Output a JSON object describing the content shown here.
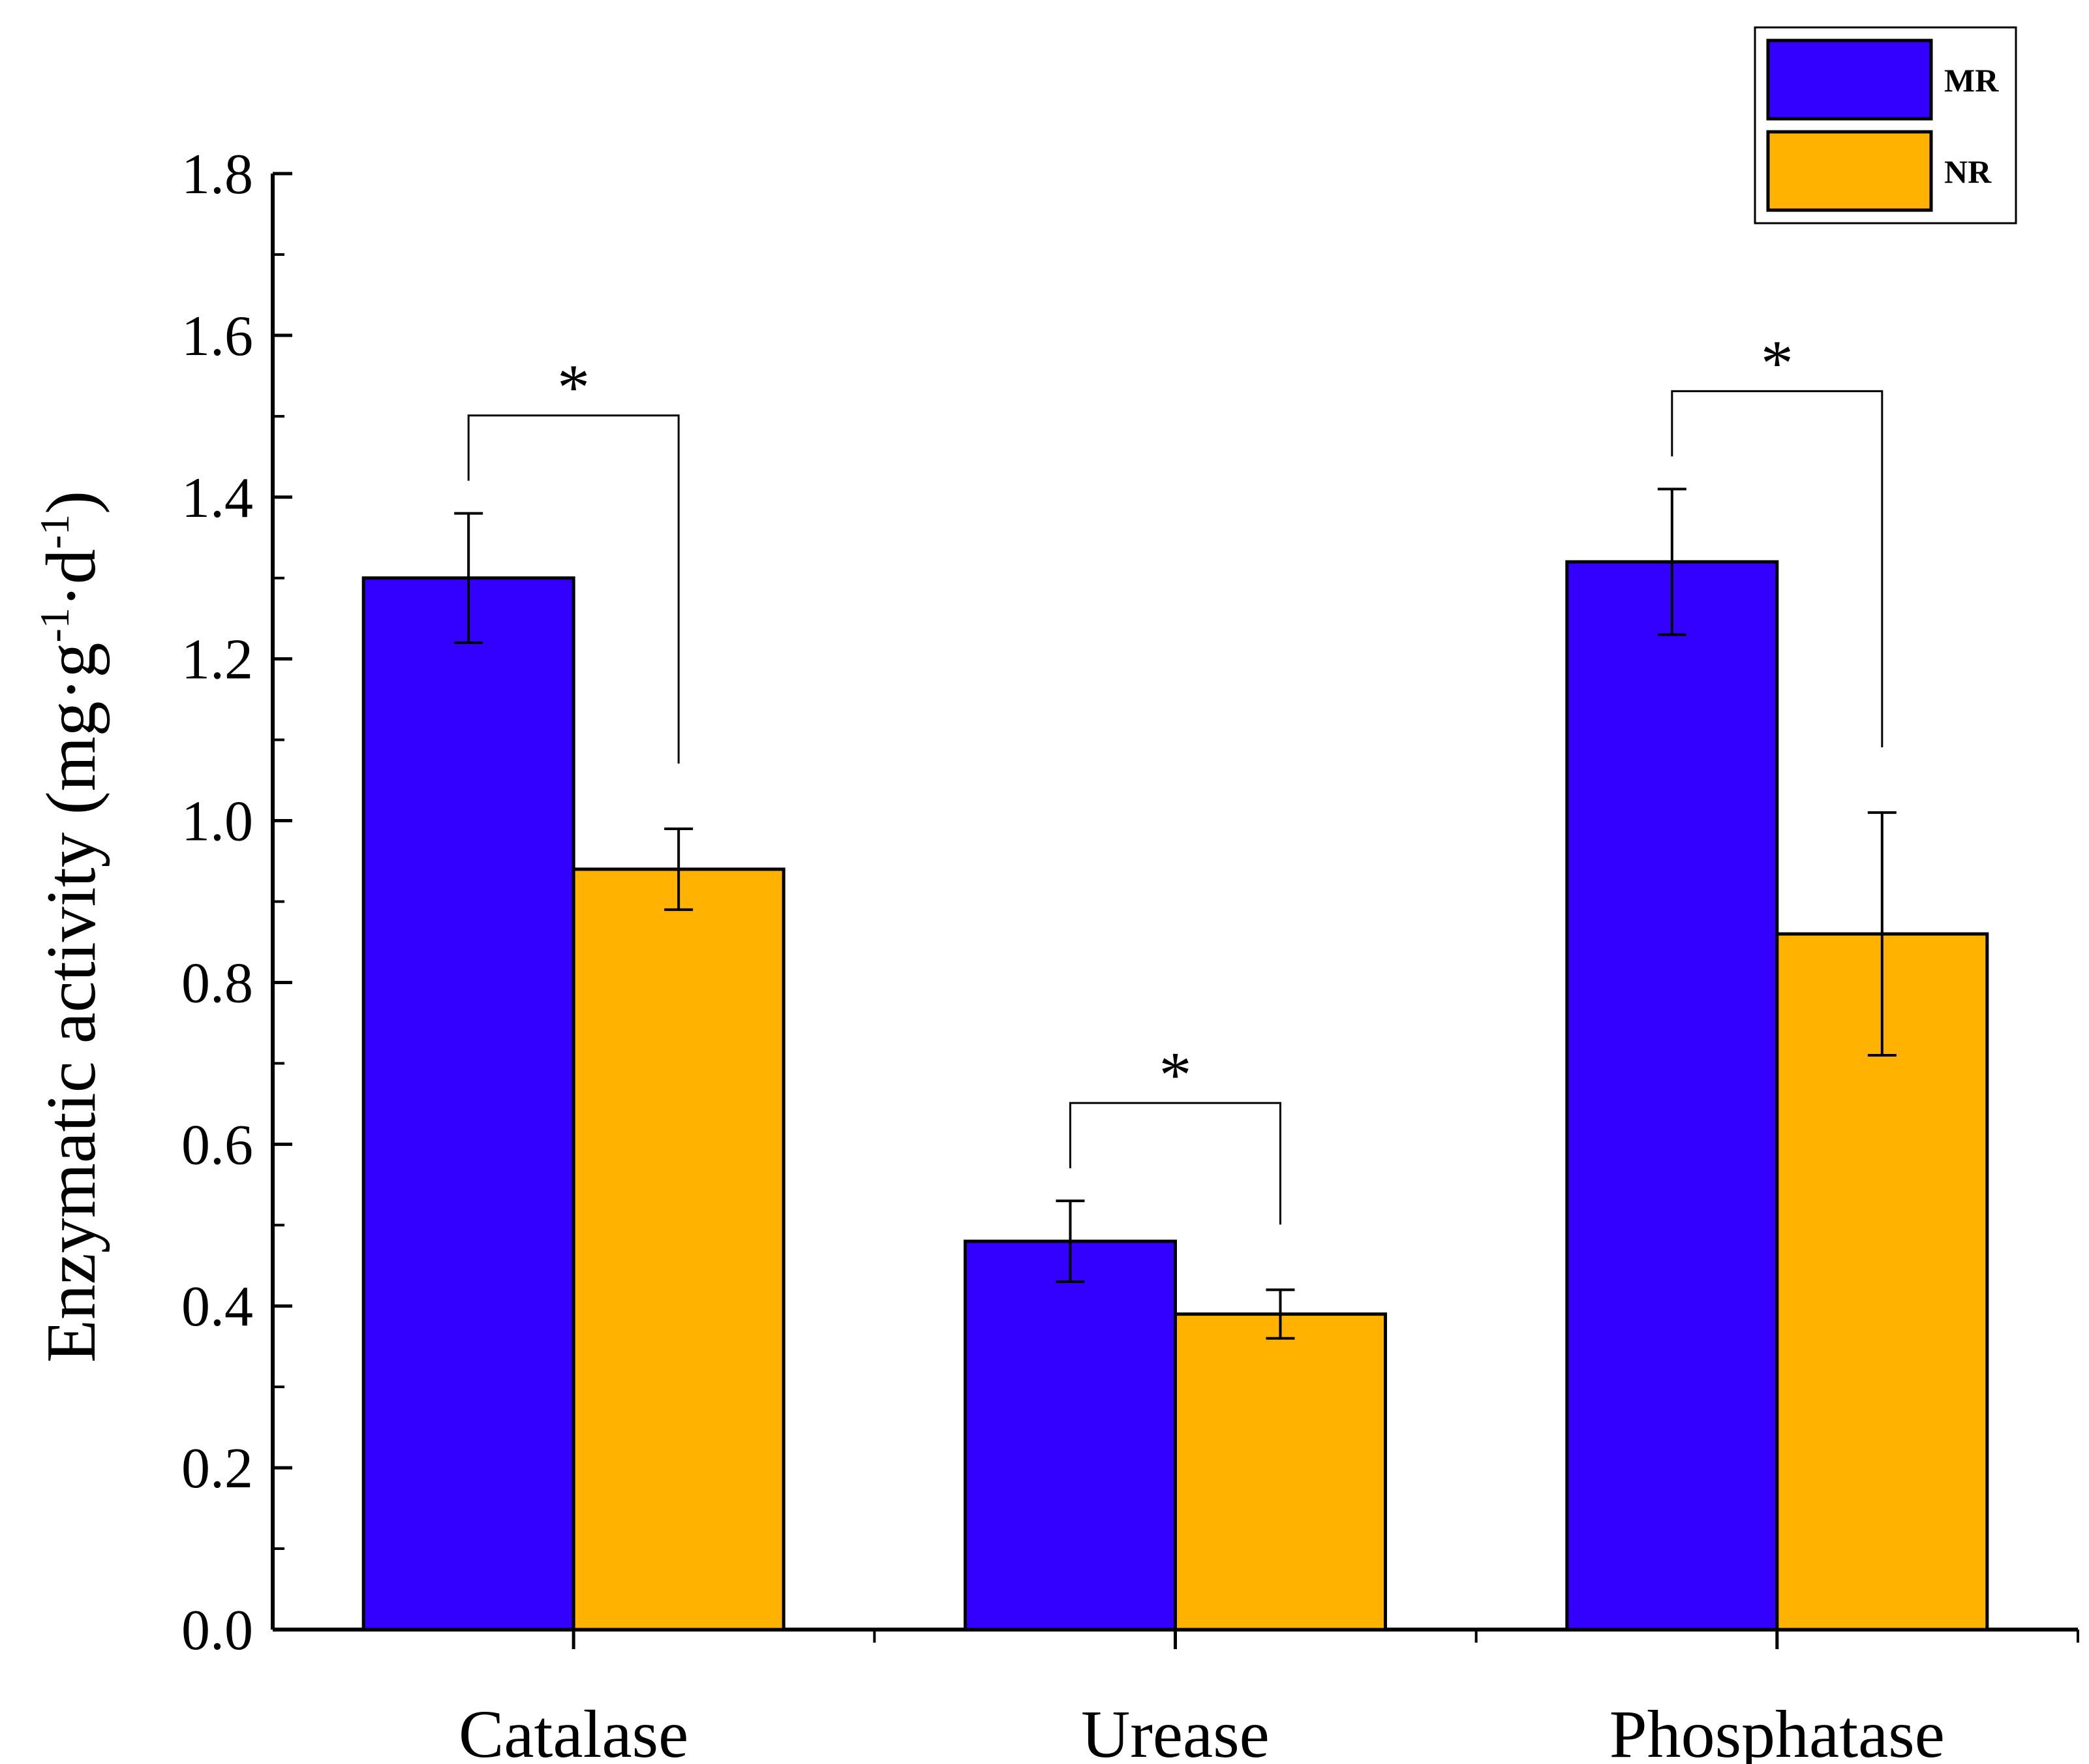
{
  "chart_data": {
    "type": "bar",
    "categories": [
      "Catalase",
      "Urease",
      "Phosphatase"
    ],
    "series": [
      {
        "name": "MR",
        "color": "#3300ff",
        "values": [
          1.3,
          0.48,
          1.32
        ],
        "errors": [
          0.08,
          0.05,
          0.09
        ]
      },
      {
        "name": "NR",
        "color": "#ffb300",
        "values": [
          0.94,
          0.39,
          0.86
        ],
        "errors": [
          0.05,
          0.03,
          0.15
        ]
      }
    ],
    "ylabel_main": "Enzymatic activity (mg·g",
    "ylabel_sup1": "-1",
    "ylabel_mid": "·d",
    "ylabel_sup2": "-1",
    "ylabel_end": ")",
    "ylim": [
      0,
      1.8
    ],
    "yticks": [
      "0.0",
      "0.2",
      "0.4",
      "0.6",
      "0.8",
      "1.0",
      "1.2",
      "1.4",
      "1.6",
      "1.8"
    ],
    "significance": [
      {
        "category": "Catalase",
        "label": "*"
      },
      {
        "category": "Urease",
        "label": "*"
      },
      {
        "category": "Phosphatase",
        "label": "*"
      }
    ],
    "legend_position": "top-right",
    "grid": false
  }
}
